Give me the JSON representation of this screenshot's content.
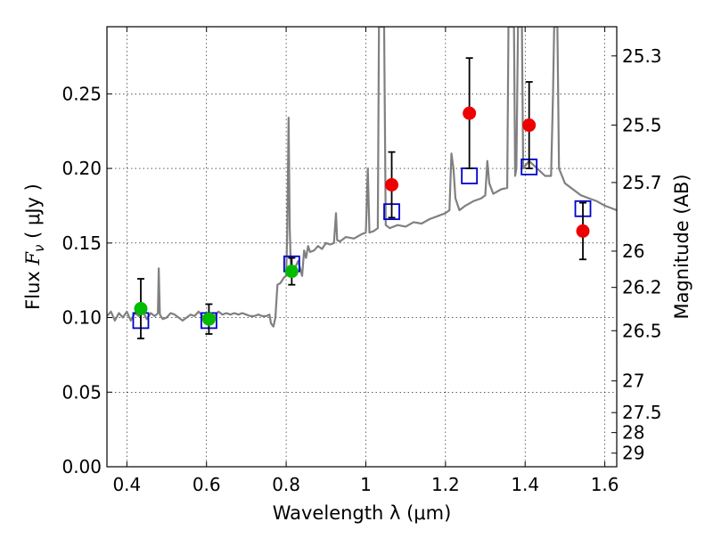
{
  "chart_data": {
    "type": "scatter",
    "title": "",
    "xlabel": "Wavelength  λ (μm)",
    "ylabel_prefix": "Flux  ",
    "ylabel_math": "F",
    "ylabel_sub": "ν",
    "ylabel_suffix": "  ( μJy )",
    "y2label": "Magnitude (AB)",
    "xlim": [
      0.35,
      1.63
    ],
    "ylim": [
      0.0,
      0.295
    ],
    "grid": true,
    "x_ticks": [
      {
        "value": 0.4,
        "label": "0.4"
      },
      {
        "value": 0.6,
        "label": "0.6"
      },
      {
        "value": 0.8,
        "label": "0.8"
      },
      {
        "value": 1.0,
        "label": "1"
      },
      {
        "value": 1.2,
        "label": "1.2"
      },
      {
        "value": 1.4,
        "label": "1.4"
      },
      {
        "value": 1.6,
        "label": "1.6"
      }
    ],
    "y_ticks": [
      {
        "value": 0.0,
        "label": "0.00"
      },
      {
        "value": 0.05,
        "label": "0.05"
      },
      {
        "value": 0.1,
        "label": "0.10"
      },
      {
        "value": 0.15,
        "label": "0.15"
      },
      {
        "value": 0.2,
        "label": "0.20"
      },
      {
        "value": 0.25,
        "label": "0.25"
      }
    ],
    "y2_ticks": [
      {
        "value": 25.3,
        "label": "25.3"
      },
      {
        "value": 25.5,
        "label": "25.5"
      },
      {
        "value": 25.7,
        "label": "25.7"
      },
      {
        "value": 26.0,
        "label": "26"
      },
      {
        "value": 26.2,
        "label": "26.2"
      },
      {
        "value": 26.5,
        "label": "26.5"
      },
      {
        "value": 27.0,
        "label": "27"
      },
      {
        "value": 27.5,
        "label": "27.5"
      },
      {
        "value": 28.0,
        "label": "28"
      },
      {
        "value": 29.0,
        "label": "29"
      }
    ],
    "colors": {
      "spectrum": "#808080",
      "model": "#0000cc",
      "optical": "#00bb00",
      "infrared": "#ee0000",
      "errorbar": "#000000"
    },
    "series": [
      {
        "name": "model spectrum",
        "kind": "line",
        "points": [
          [
            0.35,
            0.101
          ],
          [
            0.36,
            0.104
          ],
          [
            0.37,
            0.098
          ],
          [
            0.38,
            0.103
          ],
          [
            0.39,
            0.1
          ],
          [
            0.4,
            0.104
          ],
          [
            0.41,
            0.098
          ],
          [
            0.42,
            0.103
          ],
          [
            0.43,
            0.101
          ],
          [
            0.44,
            0.104
          ],
          [
            0.45,
            0.099
          ],
          [
            0.46,
            0.103
          ],
          [
            0.47,
            0.101
          ],
          [
            0.478,
            0.103
          ],
          [
            0.48,
            0.133
          ],
          [
            0.483,
            0.102
          ],
          [
            0.49,
            0.099
          ],
          [
            0.5,
            0.1
          ],
          [
            0.51,
            0.103
          ],
          [
            0.52,
            0.102
          ],
          [
            0.53,
            0.1
          ],
          [
            0.54,
            0.098
          ],
          [
            0.55,
            0.1
          ],
          [
            0.56,
            0.102
          ],
          [
            0.57,
            0.101
          ],
          [
            0.58,
            0.104
          ],
          [
            0.59,
            0.101
          ],
          [
            0.6,
            0.1
          ],
          [
            0.61,
            0.103
          ],
          [
            0.62,
            0.101
          ],
          [
            0.63,
            0.104
          ],
          [
            0.64,
            0.102
          ],
          [
            0.65,
            0.103
          ],
          [
            0.66,
            0.102
          ],
          [
            0.67,
            0.103
          ],
          [
            0.68,
            0.102
          ],
          [
            0.69,
            0.103
          ],
          [
            0.7,
            0.102
          ],
          [
            0.71,
            0.101
          ],
          [
            0.72,
            0.101
          ],
          [
            0.73,
            0.102
          ],
          [
            0.74,
            0.101
          ],
          [
            0.75,
            0.101
          ],
          [
            0.758,
            0.102
          ],
          [
            0.762,
            0.096
          ],
          [
            0.768,
            0.094
          ],
          [
            0.773,
            0.1
          ],
          [
            0.778,
            0.122
          ],
          [
            0.785,
            0.123
          ],
          [
            0.795,
            0.127
          ],
          [
            0.8,
            0.128
          ],
          [
            0.803,
            0.16
          ],
          [
            0.806,
            0.234
          ],
          [
            0.809,
            0.16
          ],
          [
            0.812,
            0.13
          ],
          [
            0.82,
            0.132
          ],
          [
            0.83,
            0.138
          ],
          [
            0.84,
            0.128
          ],
          [
            0.845,
            0.145
          ],
          [
            0.85,
            0.14
          ],
          [
            0.855,
            0.148
          ],
          [
            0.86,
            0.144
          ],
          [
            0.87,
            0.145
          ],
          [
            0.88,
            0.148
          ],
          [
            0.89,
            0.146
          ],
          [
            0.9,
            0.15
          ],
          [
            0.91,
            0.149
          ],
          [
            0.92,
            0.15
          ],
          [
            0.925,
            0.17
          ],
          [
            0.928,
            0.152
          ],
          [
            0.935,
            0.151
          ],
          [
            0.95,
            0.154
          ],
          [
            0.97,
            0.153
          ],
          [
            0.99,
            0.156
          ],
          [
            1.0,
            0.157
          ],
          [
            1.005,
            0.2
          ],
          [
            1.009,
            0.157
          ],
          [
            1.02,
            0.158
          ],
          [
            1.03,
            0.16
          ],
          [
            1.033,
            0.295
          ],
          [
            1.046,
            0.295
          ],
          [
            1.05,
            0.162
          ],
          [
            1.06,
            0.16
          ],
          [
            1.08,
            0.162
          ],
          [
            1.1,
            0.161
          ],
          [
            1.12,
            0.164
          ],
          [
            1.14,
            0.163
          ],
          [
            1.16,
            0.166
          ],
          [
            1.18,
            0.168
          ],
          [
            1.2,
            0.17
          ],
          [
            1.21,
            0.172
          ],
          [
            1.215,
            0.21
          ],
          [
            1.22,
            0.2
          ],
          [
            1.225,
            0.18
          ],
          [
            1.235,
            0.172
          ],
          [
            1.25,
            0.175
          ],
          [
            1.27,
            0.178
          ],
          [
            1.29,
            0.18
          ],
          [
            1.3,
            0.182
          ],
          [
            1.305,
            0.205
          ],
          [
            1.31,
            0.19
          ],
          [
            1.32,
            0.183
          ],
          [
            1.34,
            0.186
          ],
          [
            1.355,
            0.187
          ],
          [
            1.358,
            0.295
          ],
          [
            1.372,
            0.295
          ],
          [
            1.375,
            0.195
          ],
          [
            1.378,
            0.2
          ],
          [
            1.382,
            0.295
          ],
          [
            1.392,
            0.295
          ],
          [
            1.395,
            0.2
          ],
          [
            1.41,
            0.205
          ],
          [
            1.43,
            0.2
          ],
          [
            1.45,
            0.195
          ],
          [
            1.465,
            0.195
          ],
          [
            1.47,
            0.25
          ],
          [
            1.473,
            0.295
          ],
          [
            1.481,
            0.295
          ],
          [
            1.485,
            0.2
          ],
          [
            1.5,
            0.19
          ],
          [
            1.52,
            0.186
          ],
          [
            1.54,
            0.182
          ],
          [
            1.56,
            0.18
          ],
          [
            1.58,
            0.178
          ],
          [
            1.6,
            0.175
          ],
          [
            1.63,
            0.172
          ]
        ]
      },
      {
        "name": "model photometry",
        "kind": "square",
        "x": [
          0.435,
          0.606,
          0.814,
          1.065,
          1.26,
          1.41,
          1.545
        ],
        "y": [
          0.098,
          0.098,
          0.136,
          0.171,
          0.195,
          0.201,
          0.173
        ]
      },
      {
        "name": "optical photometry",
        "kind": "circle",
        "x": [
          0.435,
          0.606,
          0.814
        ],
        "y": [
          0.106,
          0.099,
          0.131
        ],
        "err_low": [
          0.02,
          0.01,
          0.009
        ],
        "err_high": [
          0.02,
          0.01,
          0.009
        ]
      },
      {
        "name": "infrared photometry",
        "kind": "circle",
        "x": [
          1.065,
          1.26,
          1.41,
          1.545
        ],
        "y": [
          0.189,
          0.237,
          0.229,
          0.158
        ],
        "err_low": [
          0.022,
          0.037,
          0.029,
          0.019
        ],
        "err_high": [
          0.022,
          0.037,
          0.029,
          0.019
        ]
      }
    ]
  }
}
